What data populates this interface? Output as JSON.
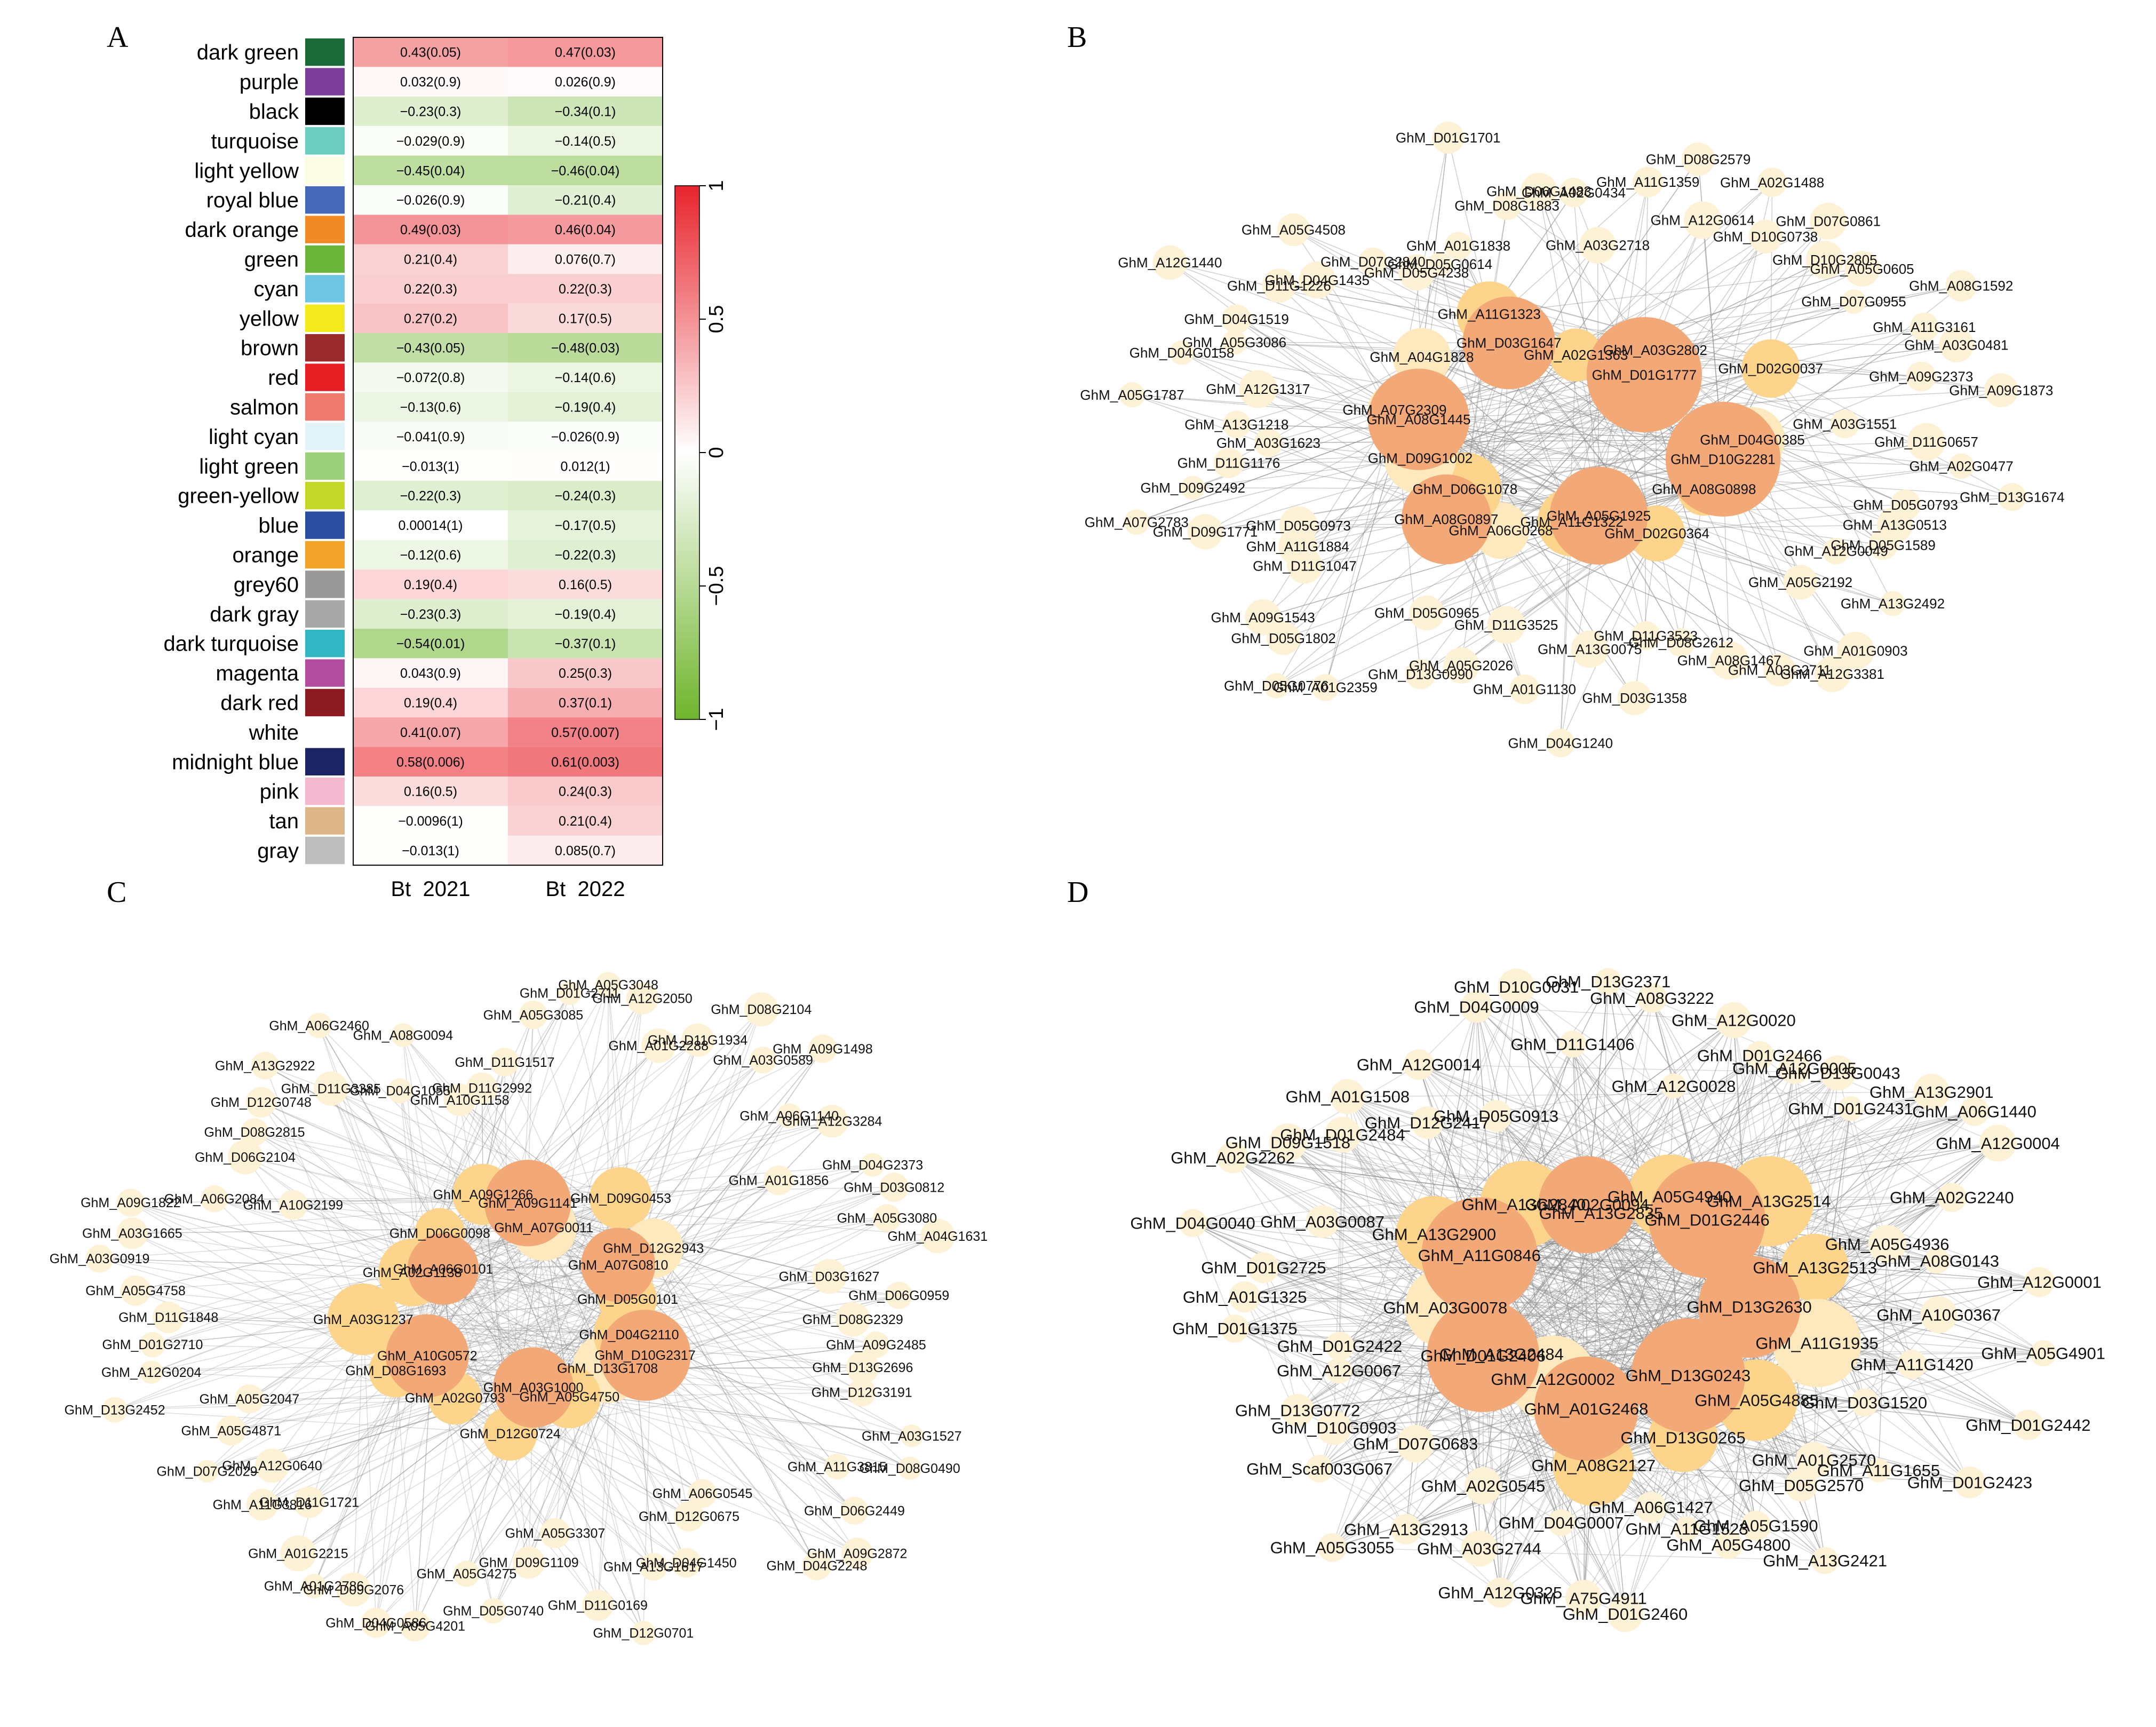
{
  "panels": {
    "A": "A",
    "B": "B",
    "C": "C",
    "D": "D"
  },
  "heatmap": {
    "columns": [
      "Bt_2021",
      "Bt_2022"
    ],
    "legend_ticks": [
      "1",
      "0.5",
      "0",
      "−0.5",
      "−1"
    ],
    "rows": [
      {
        "module": "dark green",
        "color": "#1a6b38",
        "c1": 0.43,
        "l1": "0.43(0.05)",
        "c2": 0.47,
        "l2": "0.47(0.03)"
      },
      {
        "module": "purple",
        "color": "#7b3f99",
        "c1": 0.032,
        "l1": "0.032(0.9)",
        "c2": 0.026,
        "l2": "0.026(0.9)"
      },
      {
        "module": "black",
        "color": "#000000",
        "c1": -0.23,
        "l1": "−0.23(0.3)",
        "c2": -0.34,
        "l2": "−0.34(0.1)"
      },
      {
        "module": "turquoise",
        "color": "#6bcdbd",
        "c1": -0.029,
        "l1": "−0.029(0.9)",
        "c2": -0.14,
        "l2": "−0.14(0.5)"
      },
      {
        "module": "light yellow",
        "color": "#fdfde6",
        "c1": -0.45,
        "l1": "−0.45(0.04)",
        "c2": -0.46,
        "l2": "−0.46(0.04)"
      },
      {
        "module": "royal blue",
        "color": "#4669b9",
        "c1": -0.026,
        "l1": "−0.026(0.9)",
        "c2": -0.21,
        "l2": "−0.21(0.4)"
      },
      {
        "module": "dark orange",
        "color": "#ef8a25",
        "c1": 0.49,
        "l1": "0.49(0.03)",
        "c2": 0.46,
        "l2": "0.46(0.04)"
      },
      {
        "module": "green",
        "color": "#6bb63a",
        "c1": 0.21,
        "l1": "0.21(0.4)",
        "c2": 0.076,
        "l2": "0.076(0.7)"
      },
      {
        "module": "cyan",
        "color": "#6ec6e4",
        "c1": 0.22,
        "l1": "0.22(0.3)",
        "c2": 0.22,
        "l2": "0.22(0.3)"
      },
      {
        "module": "yellow",
        "color": "#f3eb20",
        "c1": 0.27,
        "l1": "0.27(0.2)",
        "c2": 0.17,
        "l2": "0.17(0.5)"
      },
      {
        "module": "brown",
        "color": "#9b2a2d",
        "c1": -0.43,
        "l1": "−0.43(0.05)",
        "c2": -0.48,
        "l2": "−0.48(0.03)"
      },
      {
        "module": "red",
        "color": "#e81e25",
        "c1": -0.072,
        "l1": "−0.072(0.8)",
        "c2": -0.14,
        "l2": "−0.14(0.6)"
      },
      {
        "module": "salmon",
        "color": "#ef7a6e",
        "c1": -0.13,
        "l1": "−0.13(0.6)",
        "c2": -0.19,
        "l2": "−0.19(0.4)"
      },
      {
        "module": "light cyan",
        "color": "#e2f3f8",
        "c1": -0.041,
        "l1": "−0.041(0.9)",
        "c2": -0.026,
        "l2": "−0.026(0.9)"
      },
      {
        "module": "light green",
        "color": "#9dd07a",
        "c1": -0.013,
        "l1": "−0.013(1)",
        "c2": 0.012,
        "l2": "0.012(1)"
      },
      {
        "module": "green-yellow",
        "color": "#c3d829",
        "c1": -0.22,
        "l1": "−0.22(0.3)",
        "c2": -0.24,
        "l2": "−0.24(0.3)"
      },
      {
        "module": "blue",
        "color": "#2b4ea2",
        "c1": 0.00014,
        "l1": "0.00014(1)",
        "c2": -0.17,
        "l2": "−0.17(0.5)"
      },
      {
        "module": "orange",
        "color": "#f4a32a",
        "c1": -0.12,
        "l1": "−0.12(0.6)",
        "c2": -0.22,
        "l2": "−0.22(0.3)"
      },
      {
        "module": "grey60",
        "color": "#999999",
        "c1": 0.19,
        "l1": "0.19(0.4)",
        "c2": 0.16,
        "l2": "0.16(0.5)"
      },
      {
        "module": "dark gray",
        "color": "#a8a8a8",
        "c1": -0.23,
        "l1": "−0.23(0.3)",
        "c2": -0.19,
        "l2": "−0.19(0.4)"
      },
      {
        "module": "dark turquoise",
        "color": "#33b6c4",
        "c1": -0.54,
        "l1": "−0.54(0.01)",
        "c2": -0.37,
        "l2": "−0.37(0.1)"
      },
      {
        "module": "magenta",
        "color": "#b24d9d",
        "c1": 0.043,
        "l1": "0.043(0.9)",
        "c2": 0.25,
        "l2": "0.25(0.3)"
      },
      {
        "module": "dark red",
        "color": "#8c1a22",
        "c1": 0.19,
        "l1": "0.19(0.4)",
        "c2": 0.37,
        "l2": "0.37(0.1)"
      },
      {
        "module": "white",
        "color": "#ffffff",
        "c1": 0.41,
        "l1": "0.41(0.07)",
        "c2": 0.57,
        "l2": "0.57(0.007)"
      },
      {
        "module": "midnight blue",
        "color": "#1c2463",
        "c1": 0.58,
        "l1": "0.58(0.006)",
        "c2": 0.61,
        "l2": "0.61(0.003)"
      },
      {
        "module": "pink",
        "color": "#f5b9cf",
        "c1": 0.16,
        "l1": "0.16(0.5)",
        "c2": 0.24,
        "l2": "0.24(0.3)"
      },
      {
        "module": "tan",
        "color": "#dcb589",
        "c1": -0.0096,
        "l1": "−0.0096(1)",
        "c2": 0.21,
        "l2": "0.21(0.4)"
      },
      {
        "module": "gray",
        "color": "#bebebe",
        "c1": -0.013,
        "l1": "−0.013(1)",
        "c2": 0.085,
        "l2": "0.085(0.7)"
      }
    ]
  },
  "networkB": {
    "hubs": [
      "GhM_D10G2281",
      "GhM_A05G1925",
      "GhM_A08G0897",
      "GhM_A08G1445",
      "GhM_D03G1647",
      "GhM_D01G1777"
    ],
    "mids": [
      "GhM_A08G0898",
      "GhM_D02G0364",
      "GhM_A11G1322",
      "GhM_A06G0268",
      "GhM_D06G1078",
      "GhM_D09G1002",
      "GhM_A07G2309",
      "GhM_A04G1828",
      "GhM_A11G1323",
      "GhM_A02G1363",
      "GhM_A03G2802",
      "GhM_D02G0037",
      "GhM_D04G0385"
    ],
    "leaves": [
      "GhM_D13G1674",
      "GhM_D05G0793",
      "GhM_A13G0513",
      "GhM_D05G1589",
      "GhM_A12G0049",
      "GhM_A13G2492",
      "GhM_A05G2192",
      "GhM_A01G0903",
      "GhM_A12G3381",
      "GhM_A03G2711",
      "GhM_A08G1467",
      "GhM_D08G2612",
      "GhM_D11G3523",
      "GhM_D03G1358",
      "GhM_A13G0075",
      "GhM_D04G1240",
      "GhM_A01G1130",
      "GhM_D11G3525",
      "GhM_A05G2026",
      "GhM_D13G0990",
      "GhM_D05G0965",
      "GhM_A01G2359",
      "GhM_D05G0776",
      "GhM_D05G1802",
      "GhM_A09G1543",
      "GhM_D11G1047",
      "GhM_A11G1884",
      "GhM_D05G0973",
      "GhM_D09G1771",
      "GhM_A07G2783",
      "GhM_D09G2492",
      "GhM_D11G1176",
      "GhM_A03G1623",
      "GhM_A13G1218",
      "GhM_A05G1787",
      "GhM_A12G1317",
      "GhM_D04G0158",
      "GhM_A05G3086",
      "GhM_D04G1519",
      "GhM_A12G1440",
      "GhM_D11G1226",
      "GhM_D04G1435",
      "GhM_A05G4508",
      "GhM_D07G2840",
      "GhM_D05G4238",
      "GhM_D05G0614",
      "GhM_A01G1838",
      "GhM_D01G1701",
      "GhM_D08G1883",
      "GhM_D06G1483",
      "GhM_A02G0434",
      "GhM_A03G2718",
      "GhM_A11G1359",
      "GhM_D08G2579",
      "GhM_A12G0614",
      "GhM_A02G1488",
      "GhM_D10G0738",
      "GhM_D07G0861",
      "GhM_D10G2805",
      "GhM_A05G0605",
      "GhM_D07G0955",
      "GhM_A08G1592",
      "GhM_A11G3161",
      "GhM_A03G0481",
      "GhM_A09G2373",
      "GhM_A09G1873",
      "GhM_A03G1551",
      "GhM_D11G0657",
      "GhM_A02G0477"
    ]
  },
  "networkC": {
    "hubs": [
      "GhM_D10G2317",
      "GhM_A03G1000",
      "GhM_A10G0572",
      "GhM_A06G0101",
      "GhM_A09G1141",
      "GhM_A07G0810"
    ],
    "mids": [
      "GhM_D13G1708",
      "GhM_A05G4750",
      "GhM_D12G0724",
      "GhM_A02G0793",
      "GhM_D08G1693",
      "GhM_A03G1237",
      "GhM_A02G1138",
      "GhM_D06G0098",
      "GhM_A09G1266",
      "GhM_A07G0011",
      "GhM_D09G0453",
      "GhM_D12G2943",
      "GhM_D05G0101",
      "GhM_D04G2110"
    ],
    "leaves": [
      "GhM_D08G0490",
      "GhM_A11G3815",
      "GhM_D06G2449",
      "GhM_A09G2872",
      "GhM_D04G2248",
      "GhM_A06G0545",
      "GhM_D12G0675",
      "GhM_D04G1450",
      "GhM_A13G1617",
      "GhM_D12G0701",
      "GhM_D11G0169",
      "GhM_A05G3307",
      "GhM_D09G1109",
      "GhM_D05G0740",
      "GhM_A05G4275",
      "GhM_A05G4201",
      "GhM_D04G0586",
      "GhM_D09G2076",
      "GhM_A01G2786",
      "GhM_A01G2215",
      "GhM_D11G1721",
      "GhM_A11G3816",
      "GhM_A12G0640",
      "GhM_D07G2029",
      "GhM_A05G4871",
      "GhM_A05G2047",
      "GhM_D13G2452",
      "GhM_A12G0204",
      "GhM_D01G2710",
      "GhM_D11G1848",
      "GhM_A05G4758",
      "GhM_A03G0919",
      "GhM_A03G1665",
      "GhM_A09G1822",
      "GhM_A06G2084",
      "GhM_A10G2199",
      "GhM_D06G2104",
      "GhM_D08G2815",
      "GhM_D12G0748",
      "GhM_A13G2922",
      "GhM_D11G3385",
      "GhM_A06G2460",
      "GhM_D04G1055",
      "GhM_A08G0094",
      "GhM_A10G1158",
      "GhM_D11G2992",
      "GhM_D11G1517",
      "GhM_A05G3085",
      "GhM_D01G2711",
      "GhM_A05G3048",
      "GhM_A12G2050",
      "GhM_A01G2288",
      "GhM_D11G1934",
      "GhM_D08G2104",
      "GhM_A03G0589",
      "GhM_A09G1498",
      "GhM_A06G1140",
      "GhM_A12G3284",
      "GhM_A01G1856",
      "GhM_D04G2373",
      "GhM_D03G0812",
      "GhM_A05G3080",
      "GhM_A04G1631",
      "GhM_D03G1627",
      "GhM_D06G0959",
      "GhM_D08G2329",
      "GhM_A09G2485",
      "GhM_D13G2696",
      "GhM_D12G3191",
      "GhM_A03G1527"
    ]
  },
  "networkD": {
    "hubs": [
      "GhM_D13G0243",
      "GhM_A01G2468",
      "GhM_D01G2406",
      "GhM_A11G0846",
      "GhM_A02G0094",
      "GhM_D01G2446",
      "GhM_D13G2630"
    ],
    "mids": [
      "GhM_D13G0265",
      "GhM_A08G2127",
      "GhM_A12G0002",
      "GhM_A13G2484",
      "GhM_A03G0078",
      "GhM_A13G2900",
      "GhM_A13G2840",
      "GhM_A13G2835",
      "GhM_A05G4940",
      "GhM_A13G2514",
      "GhM_A13G2513",
      "GhM_A11G1935",
      "GhM_A05G4885"
    ],
    "leaves": [
      "GhM_D05G2570",
      "GhM_A13G2421",
      "GhM_A05G1590",
      "GhM_A05G4800",
      "GhM_A11G1523",
      "GhM_A06G1427",
      "GhM_D01G2460",
      "GhM_ A75G4911",
      "GhM_D04G0007",
      "GhM_A12G0325",
      "GhM_A03G2744",
      "GhM_A02G0545",
      "GhM_A13G2913",
      "GhM_A05G3055",
      "GhM_D07G0683",
      "GhM_Scaf003G067",
      "GhM_D10G0903",
      "GhM_D13G0772",
      "GhM_A12G0067",
      "GhM_D01G2422",
      "GhM_D01G1375",
      "GhM_A01G1325",
      "GhM_D01G2725",
      "GhM_D04G0040",
      "GhM_A03G0087",
      "GhM_A02G2262",
      "GhM_D09G1518",
      "GhM_D01G2484",
      "GhM_A01G1508",
      "GhM_D12G2417",
      "GhM_A12G0014",
      "GhM_D05G0913",
      "GhM_D04G0009",
      "GhM_D10G0031",
      "GhM_D11G1406",
      "GhM_D13G2371",
      "GhM_A08G3222",
      "GhM_A12G0028",
      "GhM_A12G0020",
      "GhM_D01G2466",
      "GhM_A12G0005",
      "GhM_D13G0043",
      "GhM_D01G2431",
      "GhM_A13G2901",
      "GhM_A06G1440",
      "GhM_A12G0004",
      "GhM_A02G2240",
      "GhM_A05G4936",
      "GhM_A08G0143",
      "GhM_A12G0001",
      "GhM_A10G0367",
      "GhM_A05G4901",
      "GhM_A11G1420",
      "GhM_D01G2442",
      "GhM_D03G1520",
      "GhM_D01G2423",
      "GhM_A11G1655",
      "GhM_A01G2570"
    ]
  },
  "chart_data": [
    {
      "type": "heatmap",
      "title": "",
      "xlabel": "",
      "ylabel": "",
      "columns": [
        "Bt_2021",
        "Bt_2022"
      ],
      "colorbar_range": [
        -1,
        1
      ],
      "colorbar_ticks": [
        1,
        0.5,
        0,
        -0.5,
        -1
      ],
      "colormap": {
        "low": "#6fb52c",
        "mid": "#ffffff",
        "high": "#e8242c"
      },
      "row_source": "heatmap.rows"
    },
    {
      "type": "network",
      "panel": "B",
      "node_source": "networkB"
    },
    {
      "type": "network",
      "panel": "C",
      "node_source": "networkC"
    },
    {
      "type": "network",
      "panel": "D",
      "node_source": "networkD"
    }
  ]
}
